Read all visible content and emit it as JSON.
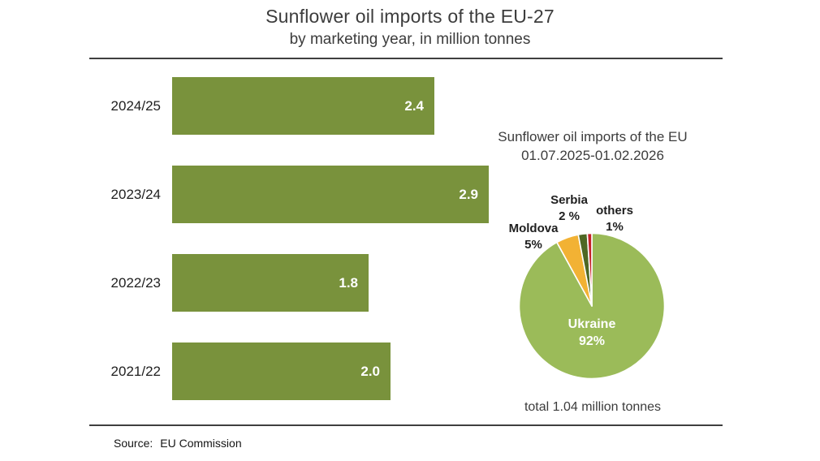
{
  "chart_data": [
    {
      "type": "bar",
      "orientation": "horizontal",
      "title": "Sunflower oil imports of the EU-27",
      "subtitle": "by marketing year, in million tonnes",
      "categories": [
        "2024/25",
        "2023/24",
        "2022/23",
        "2021/22"
      ],
      "values": [
        2.4,
        2.9,
        1.8,
        2.0
      ],
      "value_labels": [
        "2.4",
        "2.9",
        "1.8",
        "2.0"
      ],
      "xlim": [
        0,
        2.9
      ],
      "bar_color": "#79923C",
      "value_label_color": "#FFFFFF",
      "grid": false,
      "axis_visible": false
    },
    {
      "type": "pie",
      "title": "Sunflower oil imports of the EU",
      "subtitle": "01.07.2025-01.02.2026",
      "start_angle_deg": 0,
      "direction": "clockwise",
      "slices": [
        {
          "label": "Ukraine",
          "value_pct": 92,
          "pct_label": "92%",
          "color": "#9BBB59",
          "label_position": "inside"
        },
        {
          "label": "Moldova",
          "value_pct": 5,
          "pct_label": "5%",
          "color": "#F2B234",
          "label_position": "outside"
        },
        {
          "label": "Serbia",
          "value_pct": 2,
          "pct_label": "2 %",
          "color": "#4E6724",
          "label_position": "outside"
        },
        {
          "label": "others",
          "value_pct": 1,
          "pct_label": "1%",
          "color": "#C52128",
          "label_position": "outside"
        }
      ],
      "note": "total 1.04 million tonnes",
      "slice_border_color": "#FFFFFF"
    }
  ],
  "footer": {
    "source_label": "Source:",
    "source_value": "EU Commission"
  },
  "colors": {
    "divider": "#3F3F3F",
    "heading_text": "#3C3C3C",
    "label_text": "#1F1F1F"
  }
}
